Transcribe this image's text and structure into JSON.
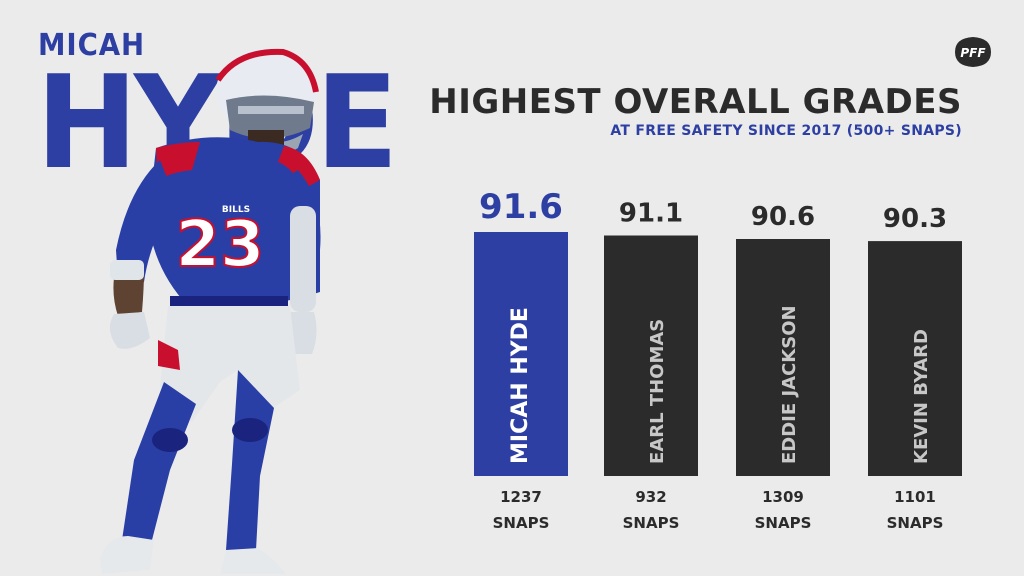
{
  "header": {
    "first_name": "MICAH",
    "last_name": "HYDE",
    "title": "HIGHEST OVERALL GRADES",
    "subtitle": "AT FREE SAFETY SINCE 2017 (500+ SNAPS)",
    "logo_text": "PFF",
    "jersey_number": "23",
    "team_wordmark": "BILLS"
  },
  "colors": {
    "accent": "#2d3fa3",
    "bar_default": "#2b2b2b",
    "background": "#ebebeb",
    "label_on_bar": "#c7c7c7"
  },
  "chart_data": {
    "type": "bar",
    "title": "HIGHEST OVERALL GRADES",
    "subtitle": "AT FREE SAFETY SINCE 2017 (500+ SNAPS)",
    "categories": [
      "MICAH HYDE",
      "EARL THOMAS",
      "EDDIE JACKSON",
      "KEVIN BYARD"
    ],
    "values": [
      91.6,
      91.1,
      90.6,
      90.3
    ],
    "value_labels": [
      "91.6",
      "91.1",
      "90.6",
      "90.3"
    ],
    "snaps": [
      "1237",
      "932",
      "1309",
      "1101"
    ],
    "snaps_unit": "SNAPS",
    "highlight_index": 0,
    "xlabel": "",
    "ylabel": "",
    "grid": false,
    "legend": "none"
  }
}
